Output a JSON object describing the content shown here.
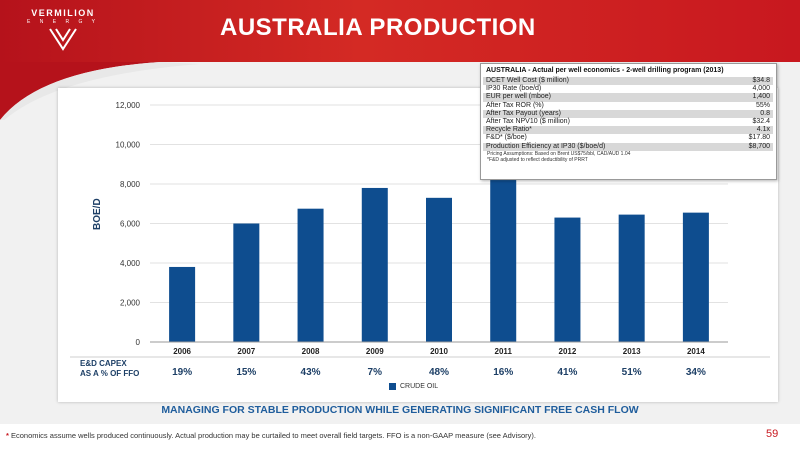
{
  "brand": {
    "name": "VERMILION",
    "sub": "E N E R G Y"
  },
  "title": "AUSTRALIA PRODUCTION",
  "chart_data": {
    "type": "bar",
    "categories": [
      "2006",
      "2007",
      "2008",
      "2009",
      "2010",
      "2011",
      "2012",
      "2013",
      "2014"
    ],
    "series": [
      {
        "name": "CRUDE OIL",
        "values": [
          3800,
          6000,
          6750,
          7800,
          7300,
          8200,
          6300,
          6450,
          6550
        ]
      }
    ],
    "ylabel": "BOE/D",
    "ylim": [
      0,
      12000
    ],
    "yticks": [
      0,
      2000,
      4000,
      6000,
      8000,
      10000,
      12000
    ],
    "ytick_labels": [
      "0",
      "2,000",
      "4,000",
      "6,000",
      "8,000",
      "10,000",
      "12,000"
    ],
    "grid": true,
    "legend": "bottom",
    "bar_color": "#0e4d8f"
  },
  "capex": {
    "label_line1": "E&D CAPEX",
    "label_line2": "AS A % OF FFO",
    "values": [
      "19%",
      "15%",
      "43%",
      "7%",
      "48%",
      "16%",
      "41%",
      "51%",
      "34%"
    ]
  },
  "econ": {
    "title": "AUSTRALIA - Actual per well economics - 2-well drilling program (2013)",
    "rows": [
      {
        "label": "DCET Well Cost ($ million)",
        "value": "$34.8"
      },
      {
        "label": "IP30 Rate (boe/d)",
        "value": "4,000"
      },
      {
        "label": "EUR per well (mboe)",
        "value": "1,400"
      },
      {
        "label": "After Tax ROR (%)",
        "value": "55%"
      },
      {
        "label": "After Tax Payout (years)",
        "value": "0.8"
      },
      {
        "label": "After Tax NPV10 ($ million)",
        "value": "$32.4"
      },
      {
        "label": "Recycle Ratio*",
        "value": "4.1x"
      },
      {
        "label": "F&D* ($/boe)",
        "value": "$17.80"
      },
      {
        "label": "Production Efficiency at IP30 ($/boe/d)",
        "value": "$8,700"
      }
    ],
    "note1": "Pricing Assumptions: Based on Brent US$75/bbl, CAD/AUD 1.04",
    "note2": "*F&D adjusted to reflect deductibility of PRRT"
  },
  "bottom_heading": "MANAGING FOR STABLE PRODUCTION WHILE GENERATING SIGNIFICANT FREE CASH FLOW",
  "footnote": {
    "star": "*",
    "text": " Economics assume wells produced continuously.  Actual production may be curtailed to meet overall field targets.  FFO is a non-GAAP measure (see Advisory)."
  },
  "page_number": "59",
  "colors": {
    "accent": "#c8181f",
    "bar": "#0e4d8f",
    "heading": "#1f5d9c"
  }
}
